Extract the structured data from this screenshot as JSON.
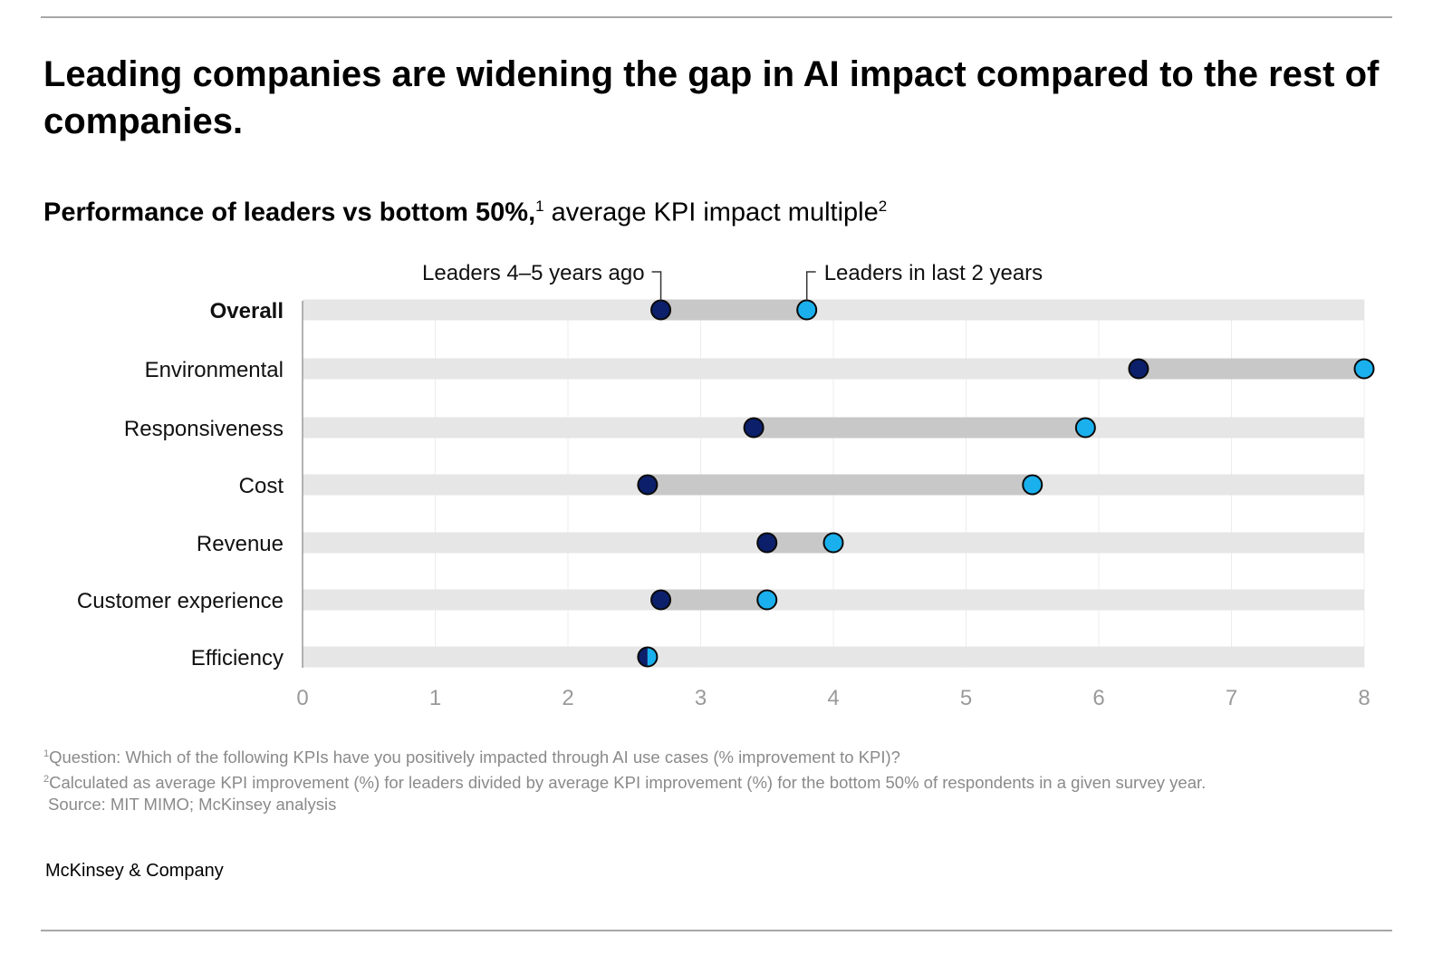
{
  "headline": "Leading companies are widening the gap in AI impact compared to the rest of companies.",
  "subtitle": {
    "bold": "Performance of leaders vs bottom 50%,",
    "bold_sup": "1",
    "regular": " average KPI impact multiple",
    "regular_sup": "2"
  },
  "chart_data": {
    "type": "dumbbell",
    "series": [
      {
        "name": "Leaders 4–5 years ago",
        "color": "#0b1f6b"
      },
      {
        "name": "Leaders in last 2 years",
        "color": "#1ab0ee"
      }
    ],
    "categories": [
      "Overall",
      "Environmental",
      "Responsiveness",
      "Cost",
      "Revenue",
      "Customer experience",
      "Efficiency"
    ],
    "bold_category": "Overall",
    "values_then": [
      2.7,
      6.3,
      3.4,
      2.6,
      3.5,
      2.7,
      2.6
    ],
    "values_now": [
      3.8,
      8.0,
      5.9,
      5.5,
      4.0,
      3.5,
      2.6
    ],
    "xlim": [
      0,
      8
    ],
    "xticks": [
      "0",
      "1",
      "2",
      "3",
      "4",
      "5",
      "6",
      "7",
      "8"
    ],
    "grid": true,
    "track_color": "#e6e6e6",
    "range_color": "#c8c8c8"
  },
  "footnotes": {
    "note1_mark": "1",
    "note1": "Question: Which of the following KPIs have you positively impacted through AI use cases (% improvement to KPI)?",
    "note2_mark": "2",
    "note2": "Calculated as average KPI improvement (%) for leaders divided by average KPI improvement (%) for the bottom 50% of respondents in a given survey year.",
    "source": "Source: MIT MIMO; McKinsey analysis"
  },
  "brand": "McKinsey & Company"
}
